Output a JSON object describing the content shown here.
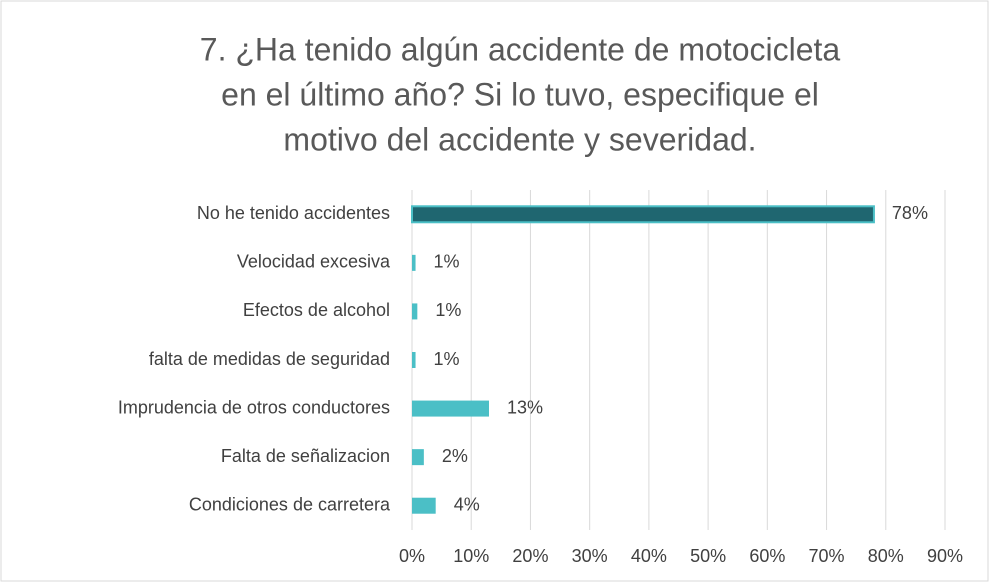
{
  "chart_data": {
    "type": "hbar",
    "title": [
      "7.  ¿Ha tenido algún accidente de motocicleta",
      "en el último año? Si lo tuvo, especifique el",
      "motivo del accidente y severidad."
    ],
    "categories": [
      "No he tenido accidentes",
      "Velocidad excesiva",
      "Efectos de alcohol",
      "falta de medidas de seguridad",
      "Imprudencia de otros conductores",
      "Falta de señalizacion",
      "Condiciones de carretera"
    ],
    "values": [
      78,
      0.6,
      0.9,
      0.6,
      13,
      2,
      4
    ],
    "value_labels": [
      "78%",
      "1%",
      "1%",
      "1%",
      "13%",
      "2%",
      "4%"
    ],
    "colors": [
      "#1f6670",
      "#4bbfc6",
      "#4bbfc6",
      "#4bbfc6",
      "#4bbfc6",
      "#4bbfc6",
      "#4bbfc6"
    ],
    "xlim": [
      0,
      90
    ],
    "xticks": [
      {
        "value": 0,
        "label": "0%"
      },
      {
        "value": 10,
        "label": "10%"
      },
      {
        "value": 20,
        "label": "20%"
      },
      {
        "value": 30,
        "label": "30%"
      },
      {
        "value": 40,
        "label": "40%"
      },
      {
        "value": 50,
        "label": "50%"
      },
      {
        "value": 60,
        "label": "60%"
      },
      {
        "value": 70,
        "label": "70%"
      },
      {
        "value": 80,
        "label": "80%"
      },
      {
        "value": 90,
        "label": "90%"
      }
    ],
    "grid": true
  }
}
